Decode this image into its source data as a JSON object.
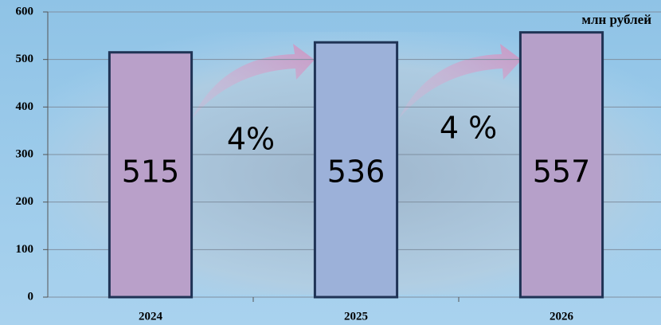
{
  "chart_data": {
    "type": "bar",
    "unit_label": "млн рублей",
    "categories": [
      "2024",
      "2025",
      "2026"
    ],
    "values": [
      515,
      536,
      557
    ],
    "colors": [
      "#b9a0c9",
      "#9cb1d9",
      "#b6a0c9"
    ],
    "annotations": [
      "4%",
      "4 %"
    ],
    "ylim": [
      0,
      600
    ],
    "yticks": [
      0,
      100,
      200,
      300,
      400,
      500,
      600
    ],
    "grid": true
  }
}
